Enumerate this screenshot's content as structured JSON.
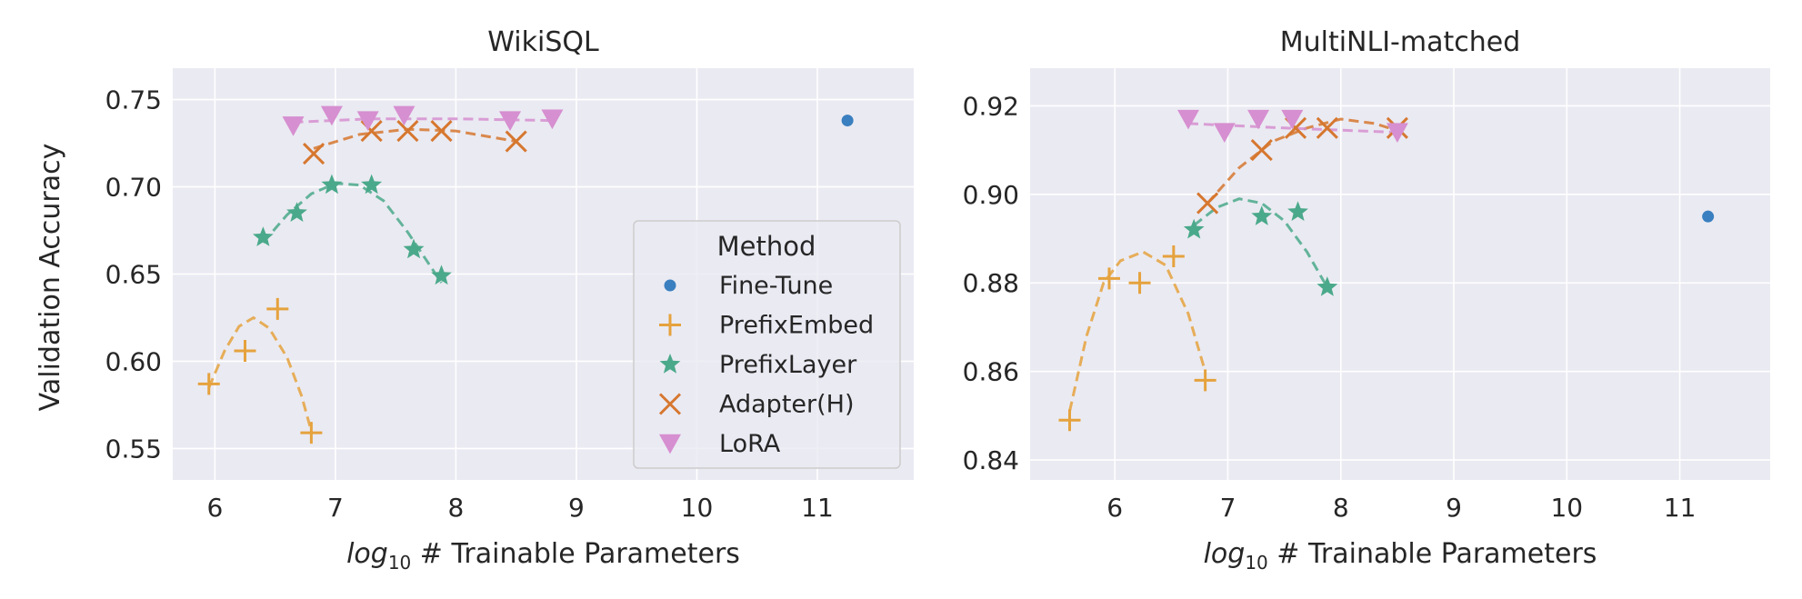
{
  "figure": {
    "ylabel": "Validation Accuracy",
    "xlabel_parts": {
      "base": "log",
      "sub": "10",
      "rest": " # Trainable Parameters"
    }
  },
  "legend": {
    "title": "Method",
    "entries": [
      {
        "key": "finetune",
        "label": "Fine-Tune"
      },
      {
        "key": "prefixembed",
        "label": "PrefixEmbed"
      },
      {
        "key": "prefixlayer",
        "label": "PrefixLayer"
      },
      {
        "key": "adapter",
        "label": "Adapter(H)"
      },
      {
        "key": "lora",
        "label": "LoRA"
      }
    ]
  },
  "styles": {
    "finetune": {
      "color": "#3a7fbf",
      "marker": "circle"
    },
    "prefixembed": {
      "color": "#e5a23d",
      "marker": "plus"
    },
    "prefixlayer": {
      "color": "#4aa98a",
      "marker": "star"
    },
    "adapter": {
      "color": "#d6772f",
      "marker": "x"
    },
    "lora": {
      "color": "#d68fd0",
      "marker": "triangle-down"
    }
  },
  "colors": {
    "panel_bg": "#eaeaf2",
    "grid": "#ffffff",
    "text": "#262626"
  },
  "chart_data": [
    {
      "type": "scatter",
      "title": "WikiSQL",
      "xlabel": "log10 # Trainable Parameters",
      "ylabel": "Validation Accuracy",
      "xlim": [
        5.65,
        11.8
      ],
      "ylim": [
        0.532,
        0.768
      ],
      "xticks": [
        6,
        7,
        8,
        9,
        10,
        11
      ],
      "yticks": [
        0.55,
        0.6,
        0.65,
        0.7,
        0.75
      ],
      "ytick_labels": [
        "0.55",
        "0.60",
        "0.65",
        "0.70",
        "0.75"
      ],
      "grid": true,
      "legend_placement": "lower-right",
      "series": [
        {
          "key": "finetune",
          "name": "Fine-Tune",
          "points": [
            [
              11.25,
              0.738
            ]
          ]
        },
        {
          "key": "prefixembed",
          "name": "PrefixEmbed",
          "points": [
            [
              5.95,
              0.587
            ],
            [
              6.25,
              0.606
            ],
            [
              6.52,
              0.63
            ],
            [
              6.8,
              0.559
            ]
          ],
          "trend": [
            [
              5.95,
              0.585
            ],
            [
              6.08,
              0.606
            ],
            [
              6.2,
              0.62
            ],
            [
              6.32,
              0.625
            ],
            [
              6.45,
              0.619
            ],
            [
              6.6,
              0.602
            ],
            [
              6.72,
              0.58
            ],
            [
              6.8,
              0.56
            ]
          ]
        },
        {
          "key": "prefixlayer",
          "name": "PrefixLayer",
          "points": [
            [
              6.4,
              0.671
            ],
            [
              6.68,
              0.685
            ],
            [
              6.97,
              0.701
            ],
            [
              7.3,
              0.701
            ],
            [
              7.65,
              0.664
            ],
            [
              7.88,
              0.649
            ]
          ],
          "trend": [
            [
              6.4,
              0.668
            ],
            [
              6.6,
              0.684
            ],
            [
              6.8,
              0.696
            ],
            [
              7.0,
              0.702
            ],
            [
              7.2,
              0.701
            ],
            [
              7.4,
              0.692
            ],
            [
              7.6,
              0.674
            ],
            [
              7.88,
              0.645
            ]
          ]
        },
        {
          "key": "adapter",
          "name": "Adapter(H)",
          "points": [
            [
              6.82,
              0.719
            ],
            [
              7.3,
              0.732
            ],
            [
              7.6,
              0.732
            ],
            [
              7.88,
              0.732
            ],
            [
              8.5,
              0.726
            ]
          ],
          "trend": [
            [
              6.82,
              0.722
            ],
            [
              7.2,
              0.73
            ],
            [
              7.6,
              0.733
            ],
            [
              8.0,
              0.732
            ],
            [
              8.5,
              0.726
            ]
          ]
        },
        {
          "key": "lora",
          "name": "LoRA",
          "points": [
            [
              6.65,
              0.735
            ],
            [
              6.97,
              0.741
            ],
            [
              7.27,
              0.738
            ],
            [
              7.57,
              0.741
            ],
            [
              8.45,
              0.738
            ],
            [
              8.8,
              0.739
            ]
          ],
          "trend": [
            [
              6.65,
              0.737
            ],
            [
              7.3,
              0.739
            ],
            [
              8.0,
              0.739
            ],
            [
              8.8,
              0.738
            ]
          ]
        }
      ]
    },
    {
      "type": "scatter",
      "title": "MultiNLI-matched",
      "xlabel": "log10 # Trainable Parameters",
      "ylabel": "",
      "xlim": [
        5.25,
        11.8
      ],
      "ylim": [
        0.8355,
        0.9285
      ],
      "xticks": [
        6,
        7,
        8,
        9,
        10,
        11
      ],
      "yticks": [
        0.84,
        0.86,
        0.88,
        0.9,
        0.92
      ],
      "ytick_labels": [
        "0.84",
        "0.86",
        "0.88",
        "0.90",
        "0.92"
      ],
      "grid": true,
      "series": [
        {
          "key": "finetune",
          "name": "Fine-Tune",
          "points": [
            [
              11.25,
              0.895
            ]
          ]
        },
        {
          "key": "prefixembed",
          "name": "PrefixEmbed",
          "points": [
            [
              5.6,
              0.849
            ],
            [
              5.95,
              0.881
            ],
            [
              6.22,
              0.88
            ],
            [
              6.52,
              0.886
            ],
            [
              6.8,
              0.858
            ]
          ],
          "trend": [
            [
              5.6,
              0.851
            ],
            [
              5.75,
              0.868
            ],
            [
              5.9,
              0.88
            ],
            [
              6.05,
              0.885
            ],
            [
              6.25,
              0.887
            ],
            [
              6.45,
              0.884
            ],
            [
              6.65,
              0.873
            ],
            [
              6.8,
              0.86
            ]
          ]
        },
        {
          "key": "prefixlayer",
          "name": "PrefixLayer",
          "points": [
            [
              6.7,
              0.892
            ],
            [
              7.3,
              0.895
            ],
            [
              7.62,
              0.896
            ],
            [
              7.88,
              0.879
            ]
          ],
          "trend": [
            [
              6.7,
              0.893
            ],
            [
              6.9,
              0.897
            ],
            [
              7.1,
              0.899
            ],
            [
              7.3,
              0.898
            ],
            [
              7.5,
              0.894
            ],
            [
              7.7,
              0.887
            ],
            [
              7.88,
              0.879
            ]
          ]
        },
        {
          "key": "adapter",
          "name": "Adapter(H)",
          "points": [
            [
              6.82,
              0.898
            ],
            [
              7.3,
              0.91
            ],
            [
              7.6,
              0.915
            ],
            [
              7.88,
              0.915
            ],
            [
              8.5,
              0.915
            ]
          ],
          "trend": [
            [
              6.82,
              0.898
            ],
            [
              7.1,
              0.906
            ],
            [
              7.4,
              0.912
            ],
            [
              7.7,
              0.915
            ],
            [
              8.0,
              0.917
            ],
            [
              8.3,
              0.916
            ],
            [
              8.55,
              0.914
            ]
          ]
        },
        {
          "key": "lora",
          "name": "LoRA",
          "points": [
            [
              6.65,
              0.917
            ],
            [
              6.97,
              0.914
            ],
            [
              7.27,
              0.917
            ],
            [
              7.57,
              0.917
            ],
            [
              8.5,
              0.914
            ]
          ],
          "trend": [
            [
              6.65,
              0.916
            ],
            [
              7.5,
              0.915
            ],
            [
              8.5,
              0.914
            ]
          ]
        }
      ]
    }
  ]
}
